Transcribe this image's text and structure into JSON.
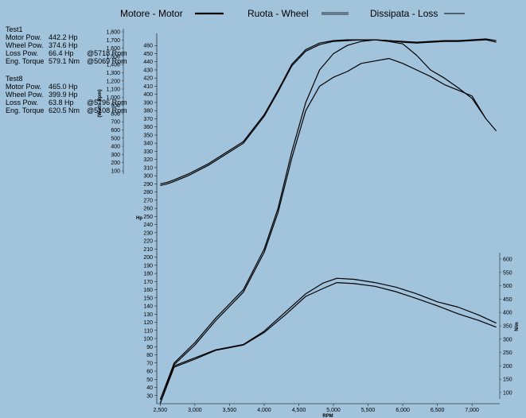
{
  "legend": [
    {
      "label": "Motore - Motor",
      "style": "thick"
    },
    {
      "label": "Ruota - Wheel",
      "style": "double"
    },
    {
      "label": "Dissipata - Loss",
      "style": "thin"
    }
  ],
  "tests": [
    {
      "name": "Test1",
      "rows": [
        {
          "label": "Motor Pow.",
          "value": "442.2 Hp",
          "at": ""
        },
        {
          "label": "Wheel Pow.",
          "value": "374.6 Hp",
          "at": ""
        },
        {
          "label": "Loss Pow.",
          "value": "66.4 Hp",
          "at": "@5718 Rpm"
        },
        {
          "label": "Eng. Torque",
          "value": "579.1 Nm",
          "at": "@5069 Rpm"
        }
      ]
    },
    {
      "name": "Test8",
      "rows": [
        {
          "label": "Motor Pow.",
          "value": "465.0 Hp",
          "at": ""
        },
        {
          "label": "Wheel Pow.",
          "value": "399.9 Hp",
          "at": ""
        },
        {
          "label": "Loss Pow.",
          "value": "63.8 Hp",
          "at": "@5796 Rpm"
        },
        {
          "label": "Eng. Torque",
          "value": "620.5 Nm",
          "at": "@5108 Rpm"
        }
      ]
    }
  ],
  "chart_data": {
    "type": "line",
    "xlabel": "RPM",
    "ylabel_left": "Hp",
    "ylabel_right": "N/m",
    "ylabel_inner": "(Watts Rpm)",
    "xlim": [
      2450,
      7400
    ],
    "ylim_left": [
      20,
      470
    ],
    "ylim_right": [
      60,
      620
    ],
    "ylim_inner": [
      60,
      1820
    ],
    "x_ticks": [
      "2,500",
      "3,000",
      "3,500",
      "4,000",
      "4,500",
      "5,000",
      "5,500",
      "6,000",
      "6,500",
      "7,000"
    ],
    "x_tick_values": [
      2500,
      3000,
      3500,
      4000,
      4500,
      5000,
      5500,
      6000,
      6500,
      7000
    ],
    "y_left_ticks": [
      30,
      40,
      50,
      60,
      70,
      80,
      90,
      100,
      110,
      120,
      130,
      140,
      150,
      160,
      170,
      180,
      190,
      200,
      210,
      220,
      230,
      240,
      250,
      260,
      270,
      280,
      290,
      300,
      310,
      320,
      330,
      340,
      350,
      360,
      370,
      380,
      390,
      400,
      410,
      420,
      430,
      440,
      450,
      460
    ],
    "y_right_ticks": [
      100,
      150,
      200,
      250,
      300,
      350,
      400,
      450,
      500,
      550,
      600
    ],
    "y_inner_ticks": [
      100,
      200,
      300,
      400,
      500,
      600,
      700,
      800,
      900,
      1000,
      1100,
      1200,
      1300,
      1400,
      1500,
      1600,
      1700,
      1800
    ],
    "series": [
      {
        "axis": "left",
        "x": [
          2500,
          2600,
          2700,
          2900,
          3200,
          3700,
          4000,
          4200,
          4400,
          4600,
          4800,
          5000,
          5200,
          5400,
          5600,
          5800,
          6000,
          6200,
          6400,
          6600,
          6800,
          7000,
          7200,
          7350
        ],
        "y": [
          290,
          292,
          295,
          302,
          315,
          342,
          375,
          405,
          437,
          455,
          463,
          466,
          467,
          467,
          467,
          466,
          465,
          464,
          465,
          466,
          466,
          467,
          468,
          466
        ]
      },
      {
        "axis": "left",
        "x": [
          2500,
          2600,
          2700,
          2900,
          3200,
          3700,
          4000,
          4200,
          4400,
          4600,
          4800,
          5000,
          5200,
          5400,
          5600,
          5800,
          6000,
          6200,
          6400,
          6600,
          6800,
          7000,
          7200,
          7350
        ],
        "y": [
          288,
          290,
          293,
          300,
          313,
          340,
          373,
          403,
          435,
          453,
          461,
          465,
          466,
          467,
          467,
          466,
          464,
          463,
          464,
          465,
          465,
          466,
          467,
          464
        ]
      },
      {
        "axis": "left",
        "x": [
          2500,
          2700,
          3000,
          3300,
          3700,
          4000,
          4200,
          4400,
          4600,
          4800,
          5000,
          5200,
          5400,
          5600,
          5800,
          6000,
          6200,
          6400,
          6600,
          6800,
          7000,
          7200,
          7350
        ],
        "y": [
          25,
          70,
          95,
          125,
          160,
          210,
          260,
          330,
          390,
          430,
          450,
          460,
          465,
          467,
          465,
          462,
          448,
          430,
          420,
          408,
          395,
          370,
          355
        ]
      },
      {
        "axis": "left",
        "x": [
          2500,
          2700,
          3000,
          3300,
          3700,
          4000,
          4200,
          4400,
          4600,
          4800,
          5000,
          5200,
          5400,
          5600,
          5800,
          6000,
          6200,
          6400,
          6600,
          6800,
          7000,
          7200
        ],
        "y": [
          25,
          68,
          92,
          122,
          157,
          206,
          255,
          322,
          380,
          410,
          421,
          428,
          438,
          441,
          444,
          438,
          430,
          422,
          412,
          405,
          398,
          370
        ]
      },
      {
        "axis": "right",
        "x": [
          2500,
          2700,
          3000,
          3300,
          3700,
          4000,
          4300,
          4600,
          4850,
          5050,
          5300,
          5600,
          5900,
          6200,
          6500,
          6800,
          7100,
          7350
        ],
        "y": [
          60,
          200,
          230,
          260,
          280,
          330,
          400,
          470,
          510,
          528,
          524,
          512,
          495,
          470,
          440,
          420,
          390,
          360
        ]
      },
      {
        "axis": "right",
        "x": [
          2500,
          2700,
          3000,
          3300,
          3700,
          4000,
          4300,
          4600,
          4850,
          5050,
          5300,
          5600,
          5900,
          6200,
          6500,
          6800,
          7100,
          7350
        ],
        "y": [
          60,
          195,
          225,
          258,
          278,
          325,
          390,
          460,
          490,
          512,
          508,
          498,
          478,
          452,
          425,
          395,
          370,
          345
        ]
      }
    ]
  }
}
